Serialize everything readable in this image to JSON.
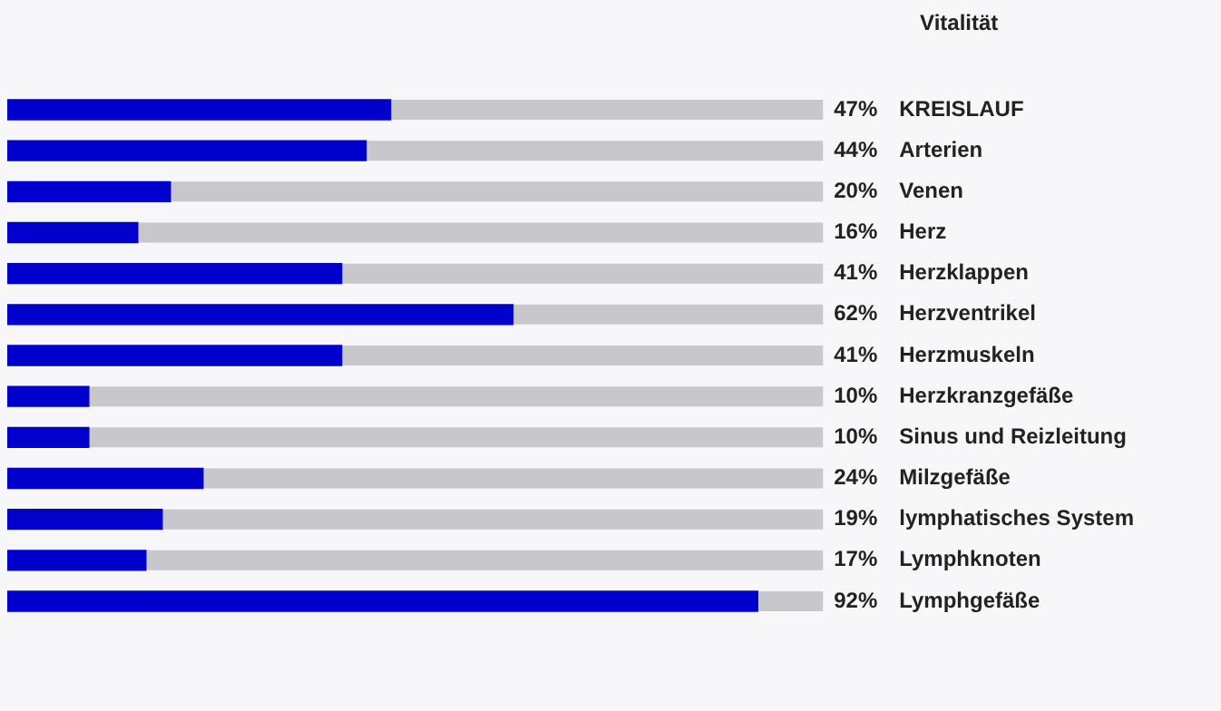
{
  "chart_data": {
    "type": "bar",
    "orientation": "horizontal",
    "title": "Vitalität",
    "categories": [
      "KREISLAUF",
      "Arterien",
      "Venen",
      "Herz",
      "Herzklappen",
      "Herzventrikel",
      "Herzmuskeln",
      "Herzkranzgefäße",
      "Sinus und Reizleitung",
      "Milzgefäße",
      "lymphatisches System",
      "Lymphknoten",
      "Lymphgefäße"
    ],
    "values": [
      47,
      44,
      20,
      16,
      41,
      62,
      41,
      10,
      10,
      24,
      19,
      17,
      92
    ],
    "value_labels": [
      "47%",
      "44%",
      "20%",
      "16%",
      "41%",
      "62%",
      "41%",
      "10%",
      "10%",
      "24%",
      "19%",
      "17%",
      "92%"
    ],
    "color": "#0000cc",
    "xlim": [
      0,
      100
    ],
    "tick_labels": "y"
  }
}
